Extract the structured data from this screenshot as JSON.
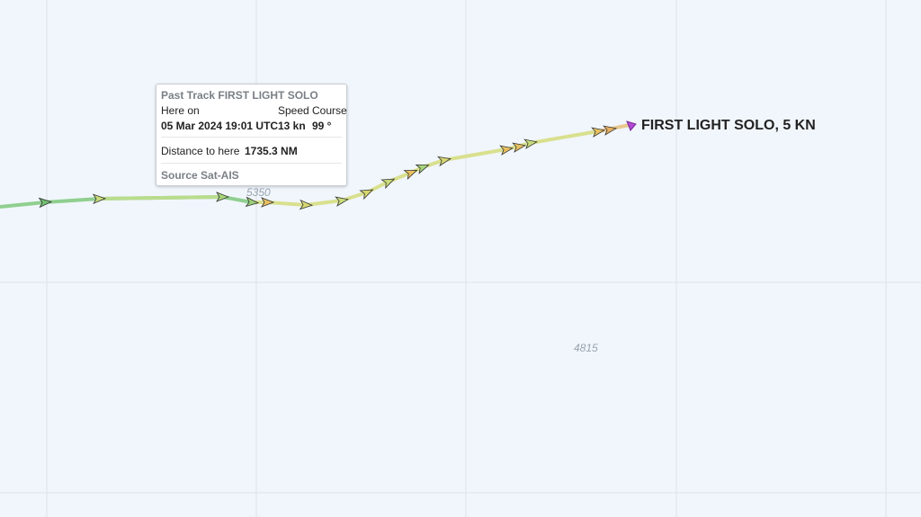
{
  "map": {
    "vessel_label": "FIRST LIGHT SOLO, 5 KN",
    "depths": [
      "5350",
      "4815"
    ],
    "tooltip": {
      "title": "Past Track FIRST LIGHT SOLO",
      "here_on_label": "Here on",
      "speed_label": "Speed",
      "course_label": "Course",
      "datetime": "05 Mar 2024 19:01 UTC",
      "speed": "13 kn",
      "course": "99 °",
      "distance_label": "Distance to here",
      "distance": "1735.3 NM",
      "source": "Source Sat-AIS"
    }
  }
}
